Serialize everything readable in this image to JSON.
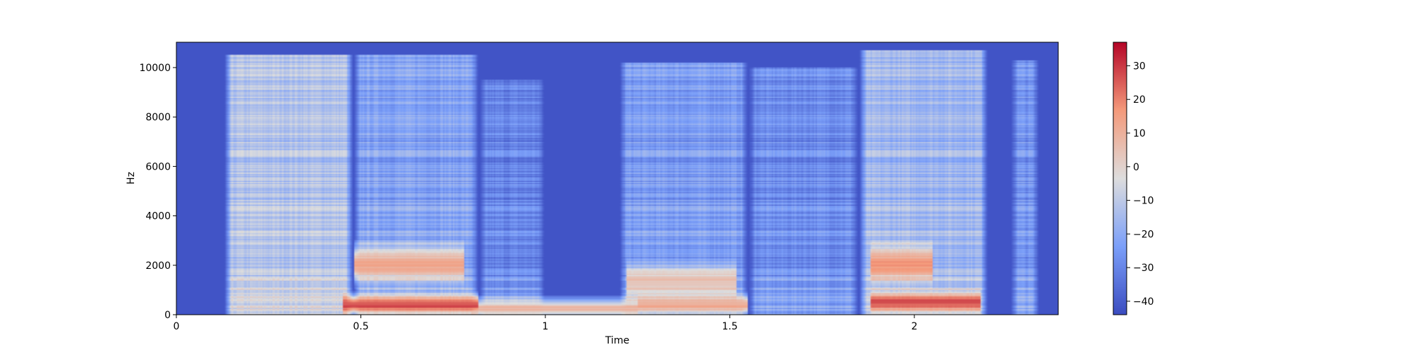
{
  "chart_data": {
    "type": "heatmap",
    "subtype": "spectrogram",
    "title": "",
    "xlabel": "Time",
    "ylabel": "Hz",
    "x_range": [
      0,
      2.39
    ],
    "y_range": [
      0,
      11025
    ],
    "x_ticks": [
      {
        "value": 0,
        "label": "0"
      },
      {
        "value": 0.5,
        "label": "0.5"
      },
      {
        "value": 1,
        "label": "1"
      },
      {
        "value": 1.5,
        "label": "1.5"
      },
      {
        "value": 2,
        "label": "2"
      }
    ],
    "y_ticks": [
      {
        "value": 0,
        "label": "0"
      },
      {
        "value": 2000,
        "label": "2000"
      },
      {
        "value": 4000,
        "label": "4000"
      },
      {
        "value": 6000,
        "label": "6000"
      },
      {
        "value": 8000,
        "label": "8000"
      },
      {
        "value": 10000,
        "label": "10000"
      }
    ],
    "colormap": "coolwarm",
    "colors": {
      "low": "#3b4cc0",
      "mid": "#dddddd",
      "high": "#b40426"
    },
    "colorbar": {
      "range": [
        -44,
        37
      ],
      "ticks": [
        {
          "value": 30,
          "label": "30"
        },
        {
          "value": 20,
          "label": "20"
        },
        {
          "value": 10,
          "label": "10"
        },
        {
          "value": 0,
          "label": "0"
        },
        {
          "value": -10,
          "label": "−10"
        },
        {
          "value": -20,
          "label": "−20"
        },
        {
          "value": -30,
          "label": "−30"
        },
        {
          "value": -40,
          "label": "−40"
        }
      ]
    },
    "segments": [
      {
        "t0": 0.13,
        "t1": 0.48,
        "level": -12,
        "note_hi": 10500
      },
      {
        "t0": 0.48,
        "t1": 0.82,
        "level": -22,
        "note_hi": 10500
      },
      {
        "t0": 0.82,
        "t1": 1.0,
        "level": -30,
        "note_hi": 9500
      },
      {
        "t0": 1.2,
        "t1": 1.55,
        "level": -24,
        "note_hi": 10200
      },
      {
        "t0": 1.55,
        "t1": 1.85,
        "level": -28,
        "note_hi": 10000
      },
      {
        "t0": 1.85,
        "t1": 2.2,
        "level": -16,
        "note_hi": 10700
      },
      {
        "t0": 2.26,
        "t1": 2.34,
        "level": -26,
        "note_hi": 10300
      }
    ],
    "formants": [
      {
        "t0": 0.45,
        "t1": 0.82,
        "f": 400,
        "level": 28
      },
      {
        "t0": 0.48,
        "t1": 0.78,
        "f": 2050,
        "level": 14
      },
      {
        "t0": 0.8,
        "t1": 1.25,
        "f": 250,
        "level": 8
      },
      {
        "t0": 1.25,
        "t1": 1.55,
        "f": 400,
        "level": 12
      },
      {
        "t0": 1.22,
        "t1": 1.52,
        "f": 1300,
        "level": 6
      },
      {
        "t0": 1.88,
        "t1": 2.18,
        "f": 500,
        "level": 28
      },
      {
        "t0": 1.88,
        "t1": 2.05,
        "f": 2050,
        "level": 18
      }
    ]
  }
}
